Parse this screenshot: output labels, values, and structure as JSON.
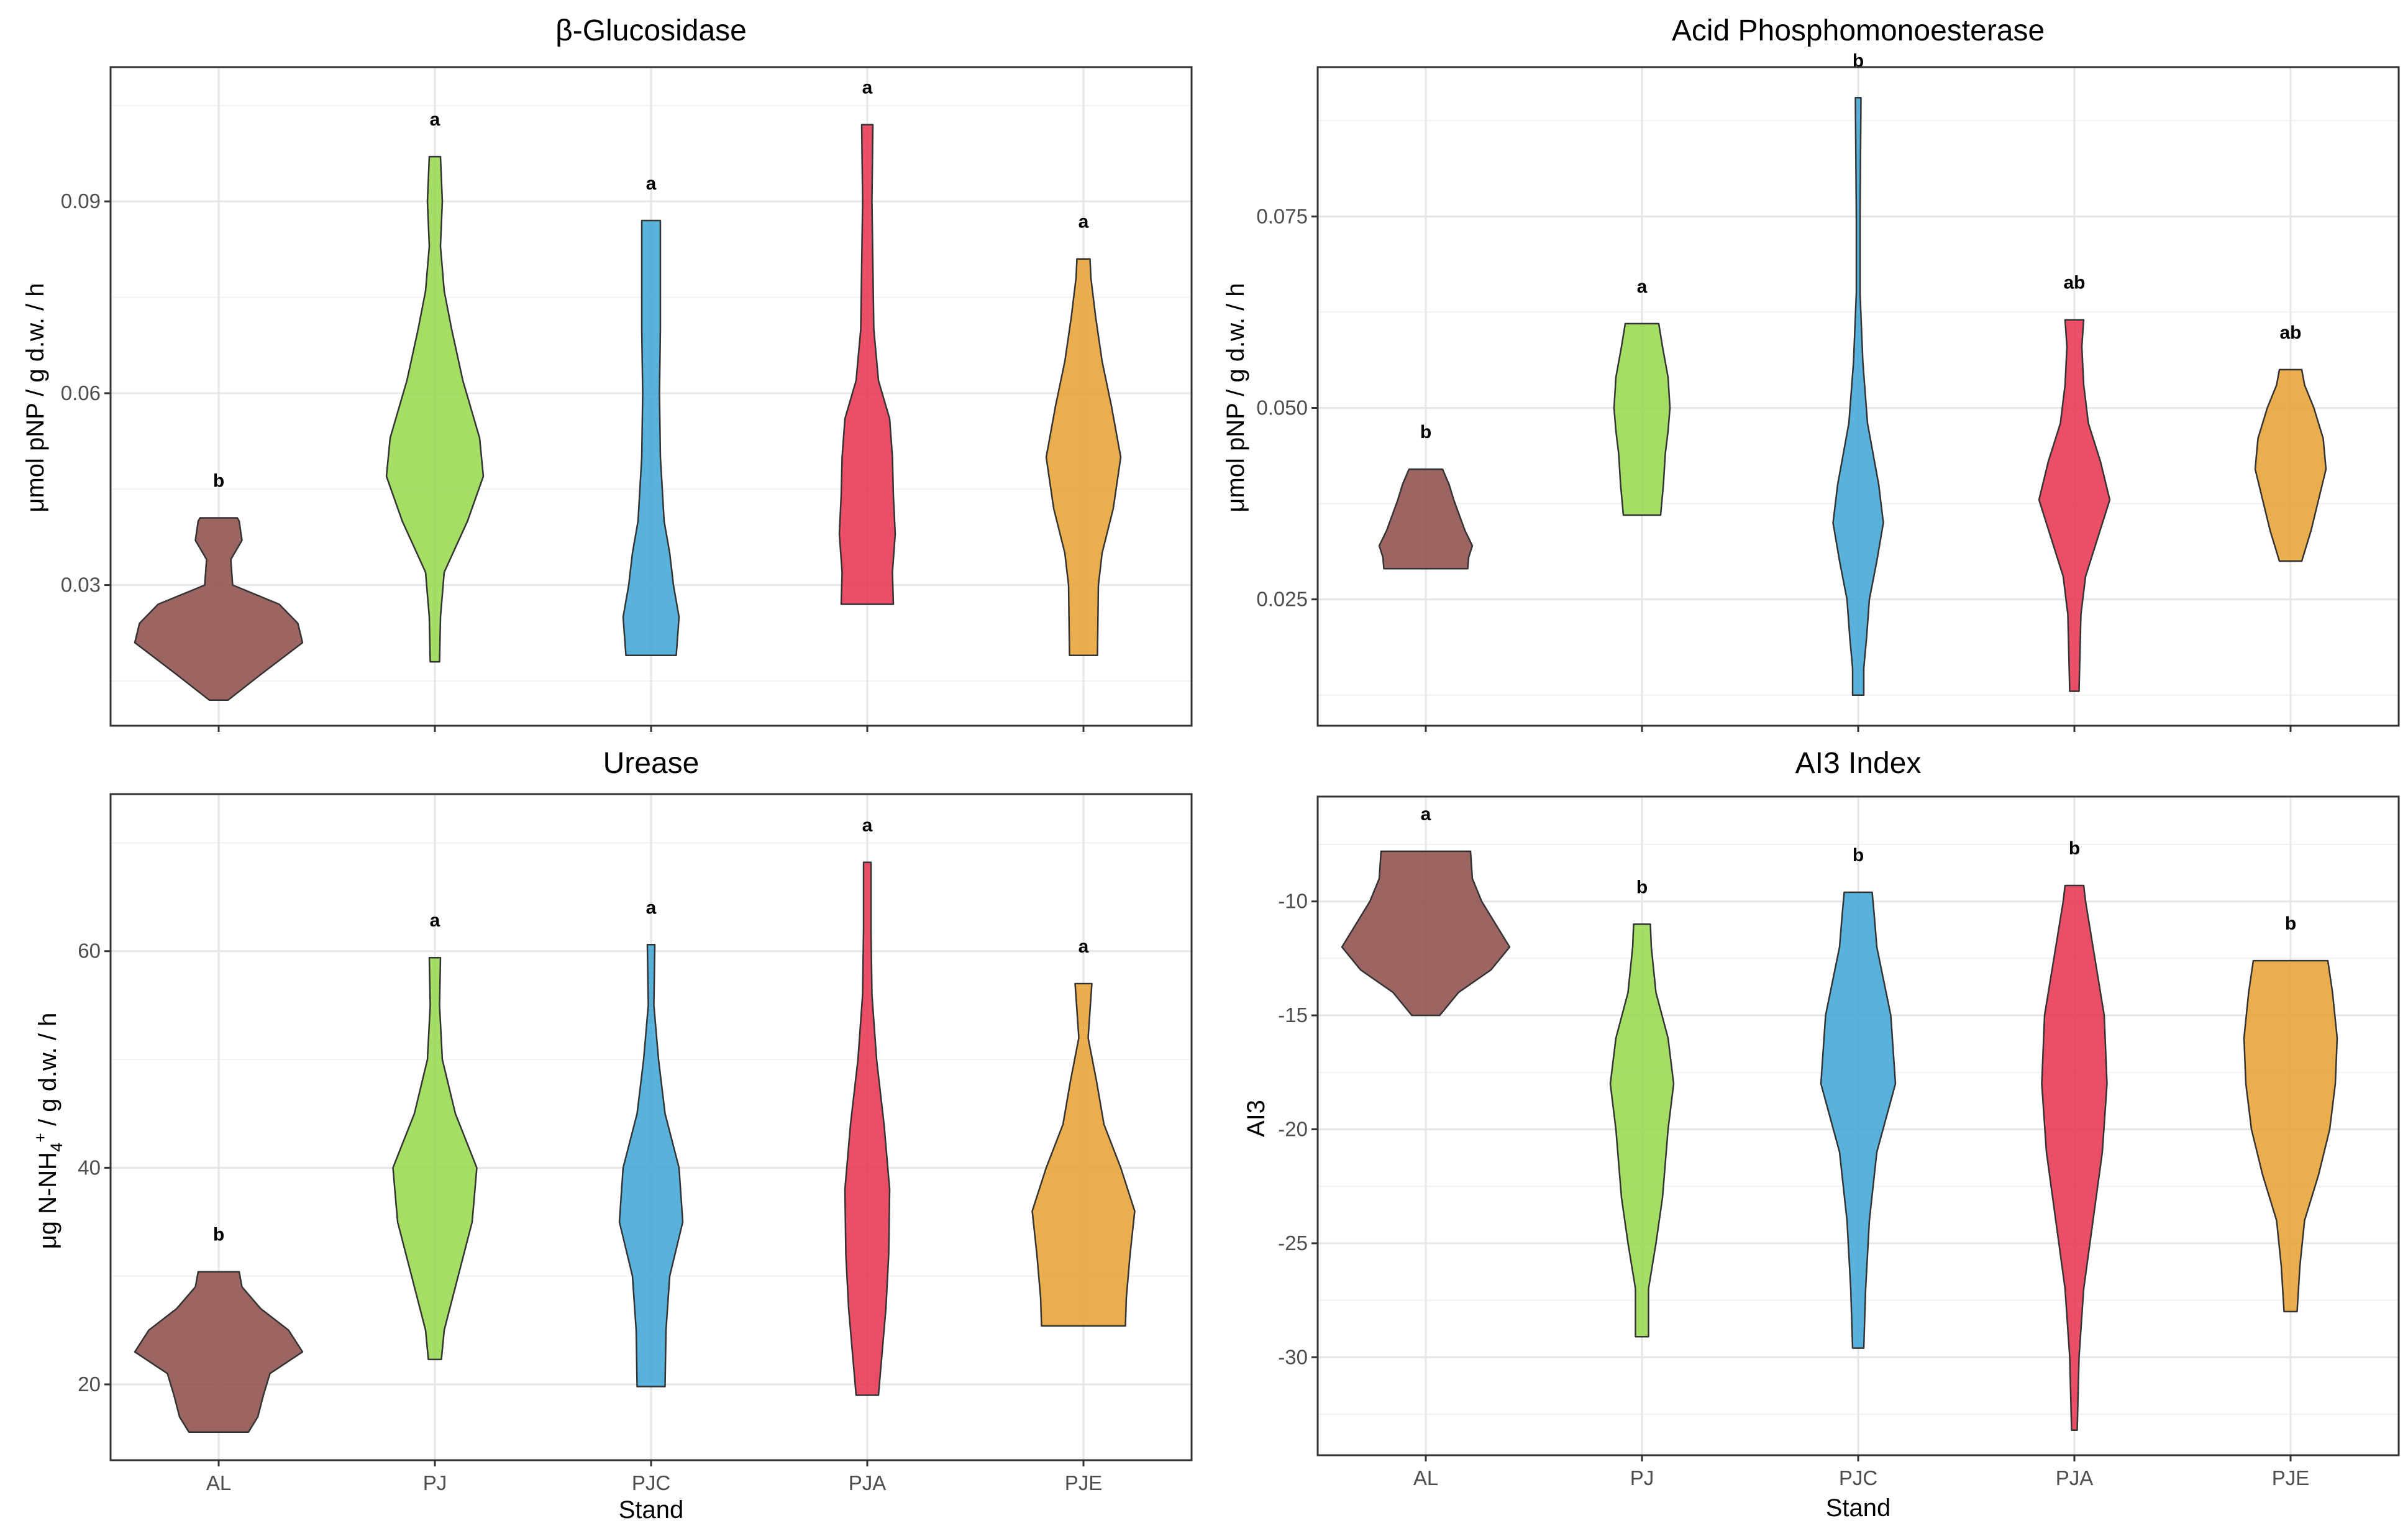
{
  "x_axis_title": "Stand",
  "chart_data": [
    {
      "type": "violin",
      "title": "β-Glucosidase",
      "xlabel": "",
      "ylabel": "μmol pNP / g d.w. / h",
      "categories": [
        "AL",
        "PJ",
        "PJC",
        "PJA",
        "PJE"
      ],
      "ylim": [
        0.008,
        0.111
      ],
      "yticks": [
        0.03,
        0.06,
        0.09
      ],
      "ytick_labels": [
        "0.03",
        "0.06",
        "0.09"
      ],
      "series": [
        {
          "name": "AL",
          "color": "#8B4A46",
          "letter": "b",
          "profile": [
            [
              0.012,
              0.1
            ],
            [
              0.016,
              0.45
            ],
            [
              0.021,
              0.9
            ],
            [
              0.024,
              0.85
            ],
            [
              0.027,
              0.65
            ],
            [
              0.03,
              0.15
            ],
            [
              0.034,
              0.13
            ],
            [
              0.037,
              0.25
            ],
            [
              0.04,
              0.22
            ],
            [
              0.0405,
              0.2
            ]
          ]
        },
        {
          "name": "PJ",
          "color": "#94D84A",
          "letter": "a",
          "profile": [
            [
              0.018,
              0.05
            ],
            [
              0.025,
              0.06
            ],
            [
              0.032,
              0.1
            ],
            [
              0.04,
              0.35
            ],
            [
              0.047,
              0.52
            ],
            [
              0.053,
              0.48
            ],
            [
              0.062,
              0.3
            ],
            [
              0.07,
              0.18
            ],
            [
              0.076,
              0.1
            ],
            [
              0.083,
              0.06
            ],
            [
              0.09,
              0.08
            ],
            [
              0.097,
              0.06
            ]
          ]
        },
        {
          "name": "PJC",
          "color": "#3BA5D6",
          "letter": "a",
          "profile": [
            [
              0.019,
              0.27
            ],
            [
              0.025,
              0.3
            ],
            [
              0.03,
              0.24
            ],
            [
              0.035,
              0.2
            ],
            [
              0.04,
              0.14
            ],
            [
              0.05,
              0.1
            ],
            [
              0.06,
              0.09
            ],
            [
              0.07,
              0.1
            ],
            [
              0.08,
              0.1
            ],
            [
              0.087,
              0.1
            ]
          ]
        },
        {
          "name": "PJA",
          "color": "#E8304E",
          "letter": "a",
          "profile": [
            [
              0.027,
              0.28
            ],
            [
              0.032,
              0.27
            ],
            [
              0.038,
              0.3
            ],
            [
              0.044,
              0.28
            ],
            [
              0.05,
              0.27
            ],
            [
              0.056,
              0.24
            ],
            [
              0.062,
              0.12
            ],
            [
              0.07,
              0.07
            ],
            [
              0.08,
              0.06
            ],
            [
              0.09,
              0.05
            ],
            [
              0.102,
              0.06
            ]
          ]
        },
        {
          "name": "PJE",
          "color": "#E8A030",
          "letter": "a",
          "profile": [
            [
              0.019,
              0.15
            ],
            [
              0.03,
              0.16
            ],
            [
              0.035,
              0.2
            ],
            [
              0.042,
              0.32
            ],
            [
              0.05,
              0.4
            ],
            [
              0.058,
              0.3
            ],
            [
              0.065,
              0.2
            ],
            [
              0.072,
              0.13
            ],
            [
              0.078,
              0.08
            ],
            [
              0.081,
              0.07
            ]
          ]
        }
      ]
    },
    {
      "type": "violin",
      "title": "Acid Phosphomonoesterase",
      "xlabel": "",
      "ylabel": "μmol pNP / g d.w. / h",
      "categories": [
        "AL",
        "PJ",
        "PJC",
        "PJA",
        "PJE"
      ],
      "ylim": [
        0.0085,
        0.0945
      ],
      "yticks": [
        0.025,
        0.05,
        0.075
      ],
      "ytick_labels": [
        "0.025",
        "0.050",
        "0.075"
      ],
      "series": [
        {
          "name": "AL",
          "color": "#8B4A46",
          "letter": "b",
          "profile": [
            [
              0.029,
              0.45
            ],
            [
              0.0305,
              0.46
            ],
            [
              0.032,
              0.5
            ],
            [
              0.034,
              0.42
            ],
            [
              0.036,
              0.36
            ],
            [
              0.038,
              0.3
            ],
            [
              0.04,
              0.25
            ],
            [
              0.042,
              0.18
            ]
          ]
        },
        {
          "name": "PJ",
          "color": "#94D84A",
          "letter": "a",
          "profile": [
            [
              0.036,
              0.2
            ],
            [
              0.04,
              0.23
            ],
            [
              0.044,
              0.25
            ],
            [
              0.047,
              0.28
            ],
            [
              0.05,
              0.3
            ],
            [
              0.054,
              0.28
            ],
            [
              0.058,
              0.22
            ],
            [
              0.061,
              0.18
            ]
          ]
        },
        {
          "name": "PJC",
          "color": "#3BA5D6",
          "letter": "b",
          "profile": [
            [
              0.0125,
              0.06
            ],
            [
              0.016,
              0.06
            ],
            [
              0.02,
              0.09
            ],
            [
              0.025,
              0.12
            ],
            [
              0.03,
              0.2
            ],
            [
              0.035,
              0.27
            ],
            [
              0.04,
              0.22
            ],
            [
              0.048,
              0.1
            ],
            [
              0.056,
              0.05
            ],
            [
              0.065,
              0.02
            ],
            [
              0.075,
              0.02
            ],
            [
              0.0905,
              0.03
            ]
          ]
        },
        {
          "name": "PJA",
          "color": "#E8304E",
          "letter": "ab",
          "profile": [
            [
              0.013,
              0.05
            ],
            [
              0.018,
              0.06
            ],
            [
              0.023,
              0.07
            ],
            [
              0.028,
              0.12
            ],
            [
              0.033,
              0.25
            ],
            [
              0.038,
              0.38
            ],
            [
              0.043,
              0.28
            ],
            [
              0.048,
              0.15
            ],
            [
              0.053,
              0.1
            ],
            [
              0.058,
              0.08
            ],
            [
              0.0615,
              0.1
            ]
          ]
        },
        {
          "name": "PJE",
          "color": "#E8A030",
          "letter": "ab",
          "profile": [
            [
              0.03,
              0.12
            ],
            [
              0.034,
              0.22
            ],
            [
              0.038,
              0.3
            ],
            [
              0.042,
              0.38
            ],
            [
              0.046,
              0.35
            ],
            [
              0.05,
              0.25
            ],
            [
              0.053,
              0.15
            ],
            [
              0.055,
              0.12
            ]
          ]
        }
      ]
    },
    {
      "type": "violin",
      "title": "Urease",
      "xlabel": "Stand",
      "ylabel": "μg N-NH4+ / g d.w. / h",
      "categories": [
        "AL",
        "PJ",
        "PJC",
        "PJA",
        "PJE"
      ],
      "ylim": [
        13,
        74.5
      ],
      "yticks": [
        20,
        40,
        60
      ],
      "ytick_labels": [
        "20",
        "40",
        "60"
      ],
      "series": [
        {
          "name": "AL",
          "color": "#8B4A46",
          "letter": "b",
          "profile": [
            [
              15.6,
              0.32
            ],
            [
              17,
              0.42
            ],
            [
              19,
              0.48
            ],
            [
              21,
              0.55
            ],
            [
              23,
              0.9
            ],
            [
              25,
              0.75
            ],
            [
              27,
              0.45
            ],
            [
              29,
              0.25
            ],
            [
              30.4,
              0.22
            ]
          ]
        },
        {
          "name": "PJ",
          "color": "#94D84A",
          "letter": "a",
          "profile": [
            [
              22.3,
              0.07
            ],
            [
              25,
              0.1
            ],
            [
              30,
              0.25
            ],
            [
              35,
              0.4
            ],
            [
              40,
              0.45
            ],
            [
              45,
              0.22
            ],
            [
              50,
              0.08
            ],
            [
              55,
              0.05
            ],
            [
              59.4,
              0.06
            ]
          ]
        },
        {
          "name": "PJC",
          "color": "#3BA5D6",
          "letter": "a",
          "profile": [
            [
              19.8,
              0.15
            ],
            [
              25,
              0.16
            ],
            [
              30,
              0.2
            ],
            [
              35,
              0.34
            ],
            [
              40,
              0.3
            ],
            [
              45,
              0.15
            ],
            [
              50,
              0.08
            ],
            [
              55,
              0.03
            ],
            [
              60.6,
              0.04
            ]
          ]
        },
        {
          "name": "PJA",
          "color": "#E8304E",
          "letter": "a",
          "profile": [
            [
              19,
              0.12
            ],
            [
              22,
              0.15
            ],
            [
              27,
              0.2
            ],
            [
              32,
              0.23
            ],
            [
              38,
              0.24
            ],
            [
              44,
              0.18
            ],
            [
              50,
              0.1
            ],
            [
              56,
              0.05
            ],
            [
              62,
              0.04
            ],
            [
              68.2,
              0.04
            ]
          ]
        },
        {
          "name": "PJE",
          "color": "#E8A030",
          "letter": "a",
          "profile": [
            [
              25.4,
              0.45
            ],
            [
              28,
              0.46
            ],
            [
              32,
              0.5
            ],
            [
              36,
              0.55
            ],
            [
              40,
              0.4
            ],
            [
              44,
              0.22
            ],
            [
              48,
              0.14
            ],
            [
              52,
              0.05
            ],
            [
              57,
              0.09
            ]
          ]
        }
      ]
    },
    {
      "type": "violin",
      "title": "AI3 Index",
      "xlabel": "Stand",
      "ylabel": "AI3",
      "categories": [
        "AL",
        "PJ",
        "PJC",
        "PJA",
        "PJE"
      ],
      "ylim": [
        -34.3,
        -5.4
      ],
      "yticks": [
        -30,
        -25,
        -20,
        -15,
        -10
      ],
      "ytick_labels": [
        "-30",
        "-25",
        "-20",
        "-15",
        "-10"
      ],
      "series": [
        {
          "name": "AL",
          "color": "#8B4A46",
          "letter": "a",
          "profile": [
            [
              -15,
              0.15
            ],
            [
              -14,
              0.35
            ],
            [
              -13,
              0.7
            ],
            [
              -12,
              0.9
            ],
            [
              -11,
              0.75
            ],
            [
              -10,
              0.6
            ],
            [
              -9,
              0.5
            ],
            [
              -7.8,
              0.48
            ]
          ]
        },
        {
          "name": "PJ",
          "color": "#94D84A",
          "letter": "b",
          "profile": [
            [
              -29.1,
              0.07
            ],
            [
              -27,
              0.07
            ],
            [
              -25,
              0.15
            ],
            [
              -23,
              0.22
            ],
            [
              -20,
              0.28
            ],
            [
              -18,
              0.34
            ],
            [
              -16,
              0.28
            ],
            [
              -14,
              0.15
            ],
            [
              -12,
              0.1
            ],
            [
              -11,
              0.09
            ]
          ]
        },
        {
          "name": "PJC",
          "color": "#3BA5D6",
          "letter": "b",
          "profile": [
            [
              -29.6,
              0.06
            ],
            [
              -27,
              0.08
            ],
            [
              -24,
              0.12
            ],
            [
              -21,
              0.2
            ],
            [
              -18,
              0.4
            ],
            [
              -15,
              0.35
            ],
            [
              -12,
              0.2
            ],
            [
              -10.5,
              0.17
            ],
            [
              -9.6,
              0.15
            ]
          ]
        },
        {
          "name": "PJA",
          "color": "#E8304E",
          "letter": "b",
          "profile": [
            [
              -33.2,
              0.03
            ],
            [
              -30,
              0.05
            ],
            [
              -27,
              0.1
            ],
            [
              -24,
              0.2
            ],
            [
              -21,
              0.3
            ],
            [
              -18,
              0.35
            ],
            [
              -15,
              0.32
            ],
            [
              -12,
              0.2
            ],
            [
              -10,
              0.12
            ],
            [
              -9.3,
              0.1
            ]
          ]
        },
        {
          "name": "PJE",
          "color": "#E8A030",
          "letter": "b",
          "profile": [
            [
              -28,
              0.07
            ],
            [
              -26,
              0.1
            ],
            [
              -24,
              0.15
            ],
            [
              -22,
              0.3
            ],
            [
              -20,
              0.42
            ],
            [
              -18,
              0.48
            ],
            [
              -16,
              0.5
            ],
            [
              -14,
              0.45
            ],
            [
              -12.6,
              0.4
            ]
          ]
        }
      ]
    }
  ]
}
